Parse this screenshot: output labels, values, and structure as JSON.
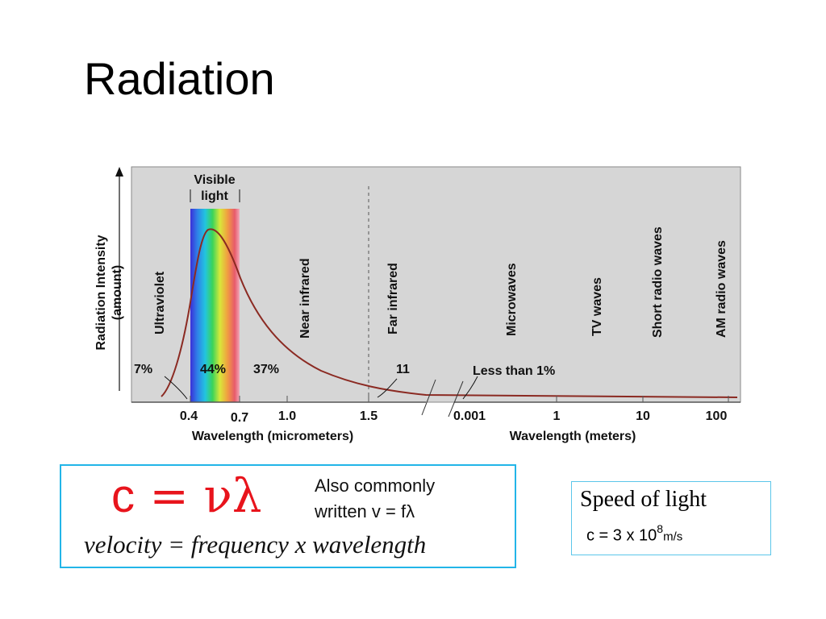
{
  "slide": {
    "title": "Radiation"
  },
  "diagram": {
    "y_axis_label_line1": "Radiation Intensity",
    "y_axis_label_line2": "(amount)",
    "visible_label_line1": "Visible",
    "visible_label_line2": "light",
    "regions": [
      "Ultraviolet",
      "Near infrared",
      "Far infrared",
      "Microwaves",
      "TV waves",
      "Short radio waves",
      "AM radio waves"
    ],
    "percentages": {
      "uv": "7%",
      "visible": "44%",
      "near_ir": "37%",
      "far_ir": "11",
      "rest": "Less than 1%"
    },
    "micrometer_ticks": [
      "0.4",
      "0.7",
      "1.0",
      "1.5"
    ],
    "meter_ticks": [
      "0.001",
      "1",
      "10",
      "100"
    ],
    "x_label_micrometers": "Wavelength (micrometers)",
    "x_label_meters": "Wavelength (meters)",
    "colors": {
      "panel": "#d6d6d6",
      "curve": "#8b2a22",
      "frame": "#555555"
    }
  },
  "equation": {
    "lhs": "c",
    "eq_sign": " = ",
    "rhs": "νλ",
    "alt_line1": "Also commonly",
    "alt_line2": "written v = fλ",
    "words": "velocity = frequency x wavelength",
    "border_color": "#22b5e8",
    "text_color": "#e8141c"
  },
  "speed_of_light": {
    "label": "Speed of light",
    "formula_prefix": "c = 3 x 10",
    "exponent": "8",
    "unit": "m/s"
  }
}
